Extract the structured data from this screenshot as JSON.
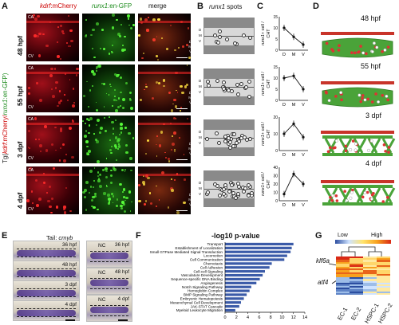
{
  "panels": {
    "A": "A",
    "B": "B",
    "C": "C",
    "D": "D",
    "E": "E",
    "F": "F",
    "G": "G"
  },
  "panelA": {
    "headers": {
      "kdrf": "kdrf",
      "mcherry": ":mCherry",
      "runx1": "runx1",
      "engfp": ":en-GFP",
      "merge": "merge"
    },
    "tg_label": {
      "pre": "Tg(",
      "k": "kdrf",
      "m": ":mCherry/",
      "r": "runx1",
      "e": ":en-GFP)"
    },
    "rows": [
      "48 hpf",
      "55 hpf",
      "3 dpf",
      "4 dpf"
    ],
    "ca": "CA",
    "cv": "CV",
    "scale_letters": [
      "D",
      "M",
      "V"
    ]
  },
  "panelB": {
    "title_italic": "runx1",
    "title_rest": " spots"
  },
  "panelC": {
    "ylabel_italic": "runx1",
    "ylabel_rest": "+ cell /",
    "ylabel_line2": "CHT",
    "chart_data": [
      {
        "type": "line",
        "categories": [
          "D",
          "M",
          "V"
        ],
        "values": [
          10,
          6,
          2.5
        ],
        "yticks": [
          0,
          5,
          10,
          15
        ],
        "ylim": [
          0,
          15
        ]
      },
      {
        "type": "line",
        "categories": [
          "D",
          "M",
          "V"
        ],
        "values": [
          10,
          11,
          5
        ],
        "yticks": [
          0,
          5,
          10,
          15
        ],
        "ylim": [
          0,
          15
        ]
      },
      {
        "type": "line",
        "categories": [
          "D",
          "M",
          "V"
        ],
        "values": [
          10,
          16,
          8
        ],
        "yticks": [
          0,
          10,
          20
        ],
        "ylim": [
          0,
          20
        ]
      },
      {
        "type": "line",
        "categories": [
          "D",
          "M",
          "V"
        ],
        "values": [
          8,
          32,
          20
        ],
        "yticks": [
          0,
          10,
          20,
          30,
          40
        ],
        "ylim": [
          0,
          40
        ]
      }
    ]
  },
  "panelD": {
    "labels": [
      "48 hpf",
      "55 hpf",
      "3 dpf",
      "4 dpf"
    ]
  },
  "panelE": {
    "title_pre": "Tail: ",
    "title_italic": "cmyb",
    "left_tags": [
      "36 hpf",
      "48 hpf",
      "3 dpf",
      "4 dpf"
    ],
    "right_tags": [
      "36 hpf",
      "48 hpf",
      "4 dpf"
    ],
    "nc": "NC"
  },
  "panelF": {
    "title": "-log10  p-value",
    "chart_data": {
      "type": "bar",
      "categories": [
        "Transport",
        "Establishment of Localization",
        "Small GTPase Mediated Signal Transduction",
        "Locomotion",
        "Cell Communication",
        "Chemotaxis",
        "Cell Adhesion",
        "Cell-cell Signaling",
        "Vasculature Development",
        "Sequence-specific DNA Binding",
        "Angiogenesis",
        "Notch Signaling Pathway",
        "Hemoglobin Complex",
        "BMP Signaling Pathway",
        "Embryonic Hematopoiesis",
        "Mesenchymal Cell Development",
        "JAK-STAT Cascade",
        "Myeloid Leukocyte Migration"
      ],
      "values": [
        12.0,
        11.7,
        11.5,
        10.9,
        10.4,
        8.2,
        7.8,
        7.0,
        6.6,
        6.1,
        5.5,
        4.6,
        4.3,
        3.8,
        3.3,
        2.8,
        2.5,
        1.8
      ],
      "xticks": [
        0,
        2,
        4,
        6,
        8,
        10,
        12,
        14
      ],
      "xlim": [
        0,
        14
      ],
      "color": "#3b5ba8"
    }
  },
  "panelG": {
    "legend_low": "Low",
    "legend_high": "High",
    "genes": [
      "klf6a",
      "atf4"
    ],
    "columns": [
      "EC-1",
      "EC-2",
      "HSPC-1",
      "HSPC-2"
    ]
  }
}
